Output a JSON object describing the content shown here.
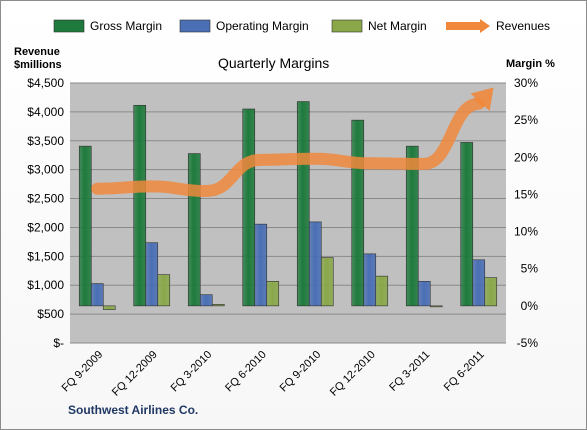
{
  "chart_data": {
    "type": "bar",
    "title": "Quarterly Margins",
    "categories": [
      "FQ 9-2009",
      "FQ 12-2009",
      "FQ 3-2010",
      "FQ 6-2010",
      "FQ 9-2010",
      "FQ 12-2010",
      "FQ 3-2011",
      "FQ 6-2011"
    ],
    "series": [
      {
        "name": "Gross Margin",
        "axis": "right",
        "color": "#1e7a3c",
        "values": [
          21.5,
          27.0,
          20.5,
          26.5,
          27.5,
          25.0,
          21.5,
          22.0
        ]
      },
      {
        "name": "Operating Margin",
        "axis": "right",
        "color": "#4a6fb5",
        "values": [
          3.0,
          8.5,
          1.5,
          11.0,
          11.3,
          7.0,
          3.3,
          6.2
        ]
      },
      {
        "name": "Net Margin",
        "axis": "right",
        "color": "#8aa84a",
        "values": [
          -0.5,
          4.2,
          0.2,
          3.3,
          6.5,
          4.0,
          0.0,
          3.8
        ]
      },
      {
        "name": "Revenues",
        "axis": "left",
        "color": "#f0883c",
        "values": [
          2670,
          2710,
          2630,
          3170,
          3190,
          3110,
          3100,
          4140
        ]
      }
    ],
    "left_axis": {
      "title": [
        "Revenue",
        "$millions"
      ],
      "ylim": [
        0,
        4500
      ],
      "ticks": [
        "$-",
        "$500",
        "$1,000",
        "$1,500",
        "$2,000",
        "$2,500",
        "$3,000",
        "$3,500",
        "$4,000",
        "$4,500"
      ]
    },
    "right_axis": {
      "title": "Margin %",
      "ylim": [
        -5,
        30
      ],
      "ticks": [
        "-5%",
        "0%",
        "5%",
        "10%",
        "15%",
        "20%",
        "25%",
        "30%"
      ]
    },
    "grid": true,
    "legend": "top"
  },
  "footer": "Southwest Airlines Co."
}
